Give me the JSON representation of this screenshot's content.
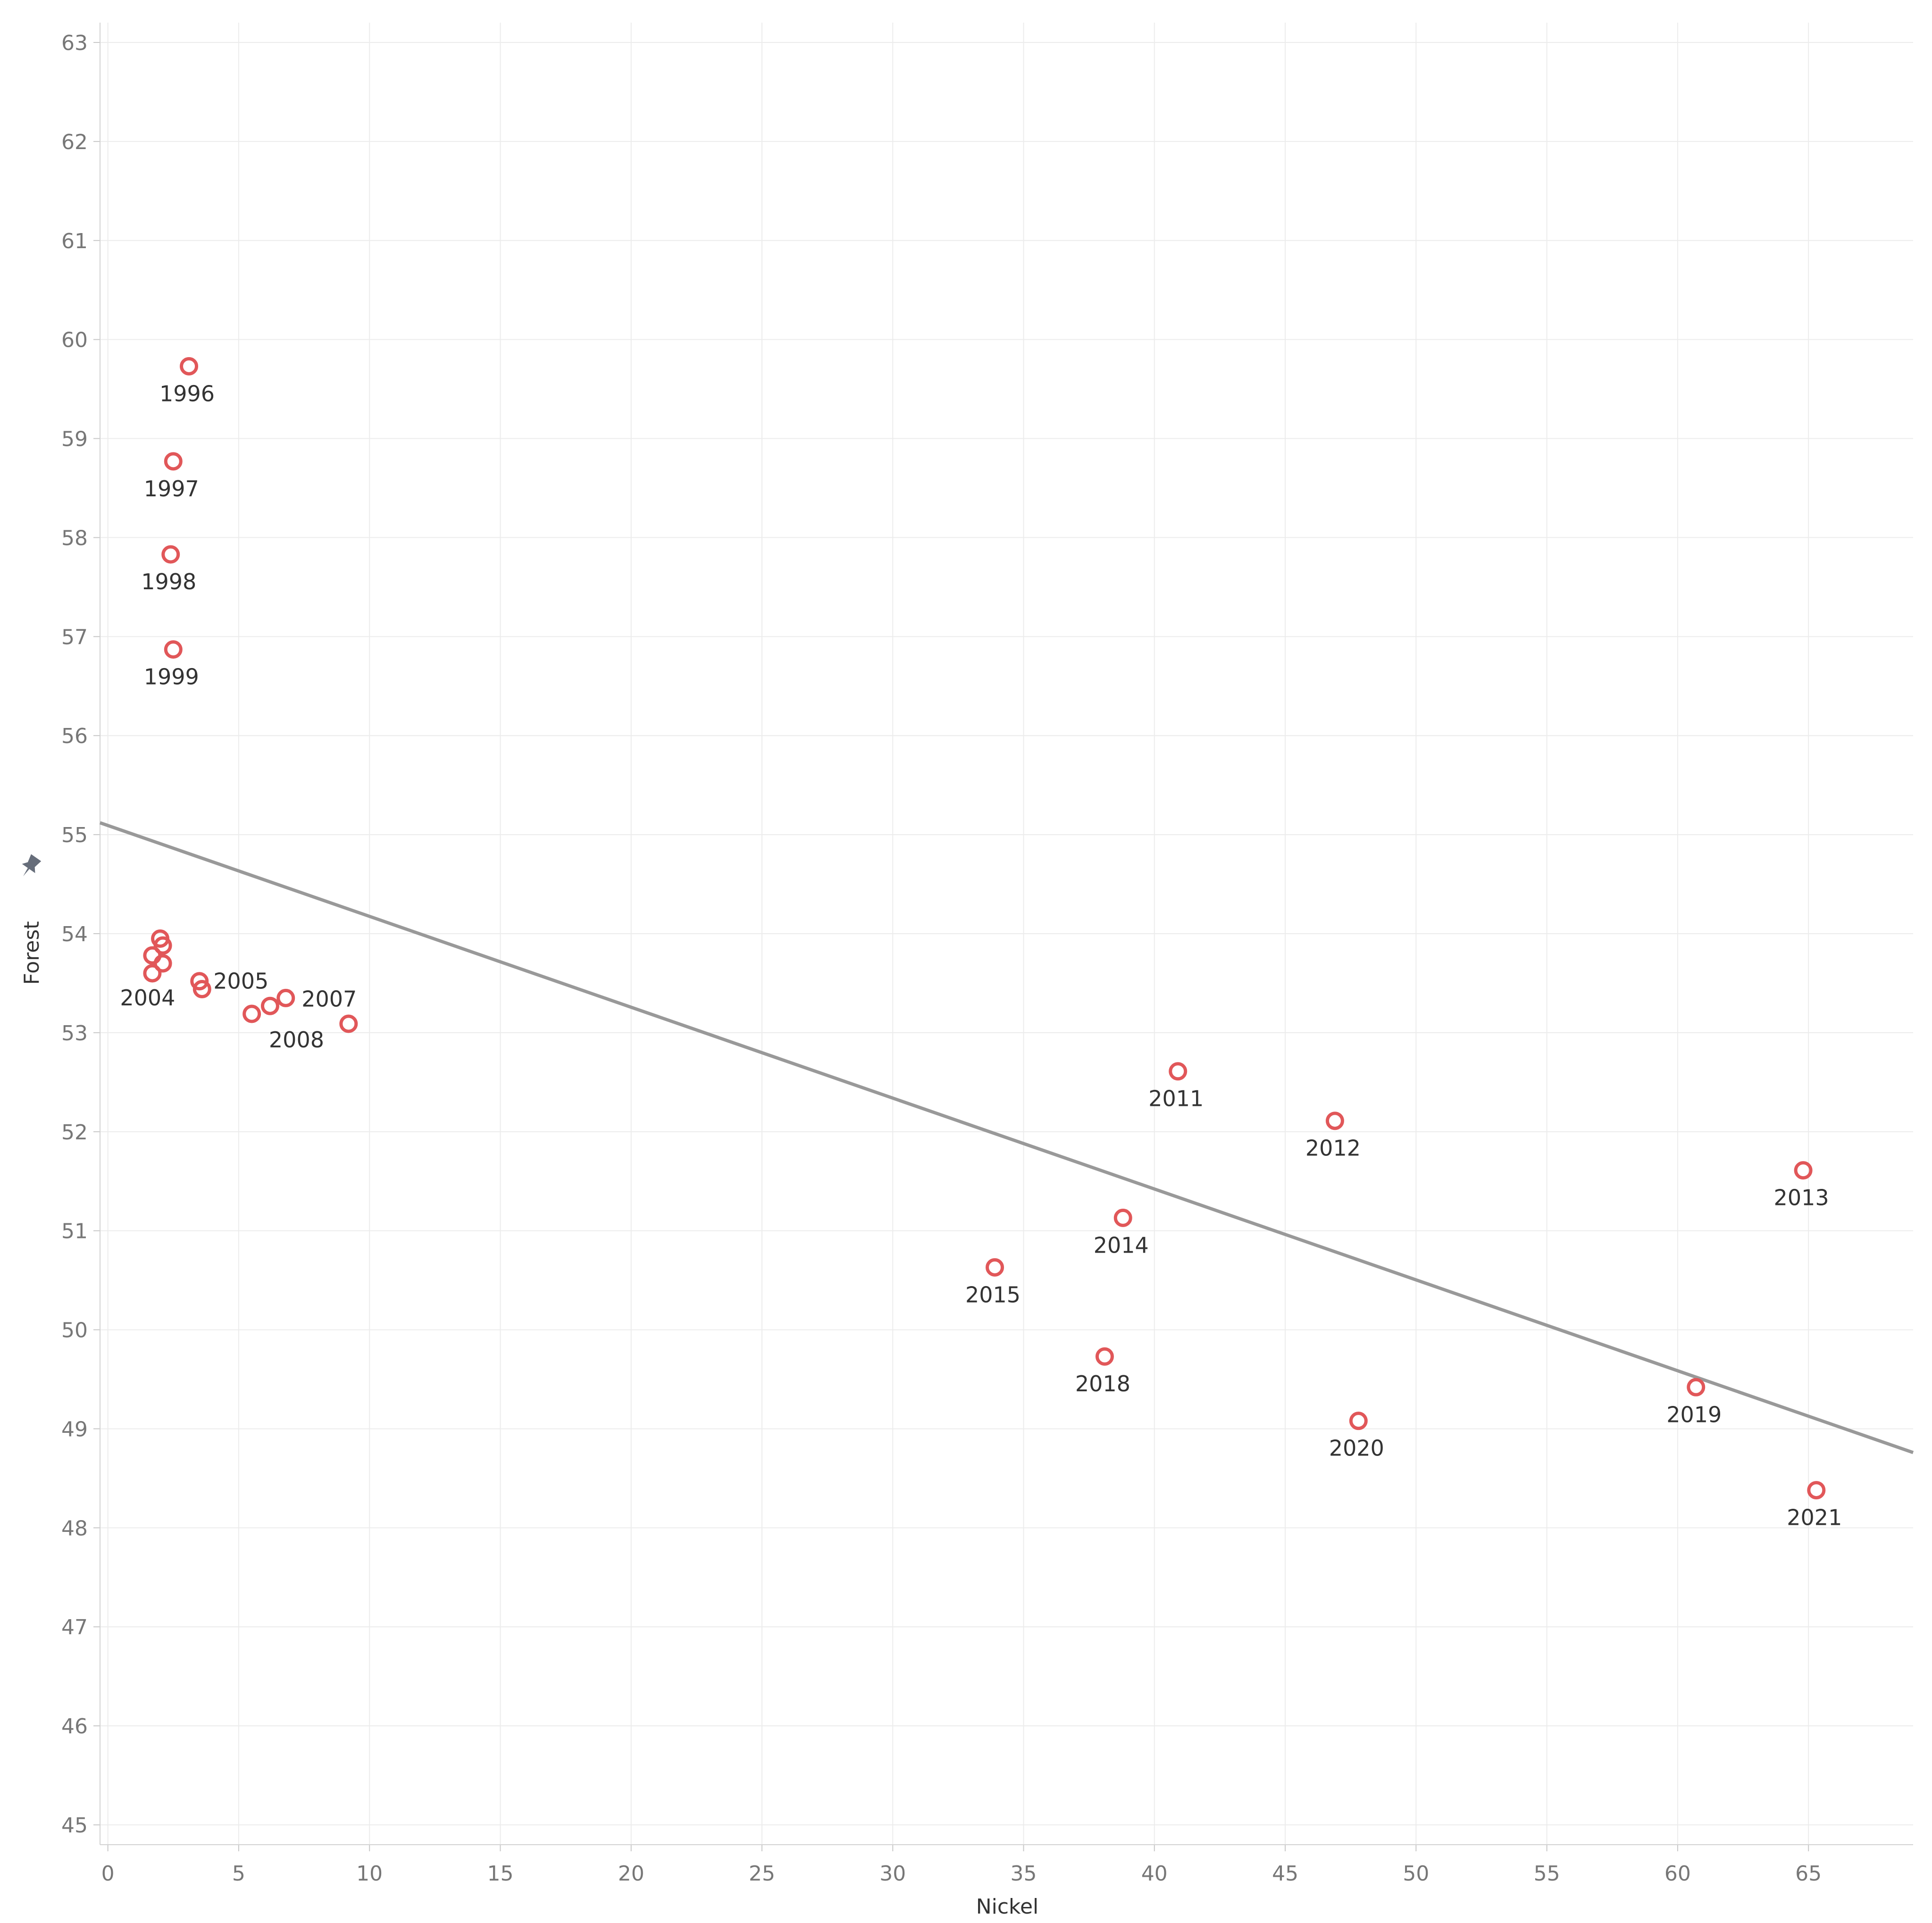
{
  "chart_data": {
    "type": "scatter",
    "title": "",
    "xlabel": "Nickel",
    "ylabel": "Forest",
    "xlim": [
      -0.3,
      69.0
    ],
    "ylim": [
      44.8,
      63.2
    ],
    "xticks": [
      0,
      5,
      10,
      15,
      20,
      25,
      30,
      35,
      40,
      45,
      50,
      55,
      60,
      65
    ],
    "yticks": [
      45,
      46,
      47,
      48,
      49,
      50,
      51,
      52,
      53,
      54,
      55,
      56,
      57,
      58,
      59,
      60,
      61,
      62,
      63
    ],
    "grid": true,
    "marker": "hollow-circle",
    "point_color": "#e15759",
    "trend_color": "#999999",
    "trendline": {
      "x": [
        -0.3,
        69.0
      ],
      "y": [
        55.12,
        48.76
      ]
    },
    "points": [
      {
        "x": 3.1,
        "y": 59.73,
        "label": "1996"
      },
      {
        "x": 2.5,
        "y": 58.77,
        "label": "1997"
      },
      {
        "x": 2.4,
        "y": 57.83,
        "label": "1998"
      },
      {
        "x": 2.5,
        "y": 56.87,
        "label": "1999"
      },
      {
        "x": 2.0,
        "y": 53.95,
        "label": ""
      },
      {
        "x": 2.1,
        "y": 53.88,
        "label": ""
      },
      {
        "x": 1.7,
        "y": 53.78,
        "label": ""
      },
      {
        "x": 2.1,
        "y": 53.7,
        "label": ""
      },
      {
        "x": 1.7,
        "y": 53.6,
        "label": "2004"
      },
      {
        "x": 3.5,
        "y": 53.52,
        "label": "2005"
      },
      {
        "x": 3.6,
        "y": 53.44,
        "label": ""
      },
      {
        "x": 6.8,
        "y": 53.35,
        "label": "2007"
      },
      {
        "x": 6.2,
        "y": 53.27,
        "label": "2008"
      },
      {
        "x": 5.5,
        "y": 53.19,
        "label": ""
      },
      {
        "x": 9.2,
        "y": 53.09,
        "label": ""
      },
      {
        "x": 40.9,
        "y": 52.61,
        "label": "2011"
      },
      {
        "x": 46.9,
        "y": 52.11,
        "label": "2012"
      },
      {
        "x": 64.8,
        "y": 51.61,
        "label": "2013"
      },
      {
        "x": 38.8,
        "y": 51.13,
        "label": "2014"
      },
      {
        "x": 33.9,
        "y": 50.63,
        "label": "2015"
      },
      {
        "x": 38.1,
        "y": 49.73,
        "label": "2018"
      },
      {
        "x": 60.7,
        "y": 49.42,
        "label": "2019"
      },
      {
        "x": 47.8,
        "y": 49.08,
        "label": "2020"
      },
      {
        "x": 65.3,
        "y": 48.38,
        "label": "2021"
      }
    ]
  }
}
